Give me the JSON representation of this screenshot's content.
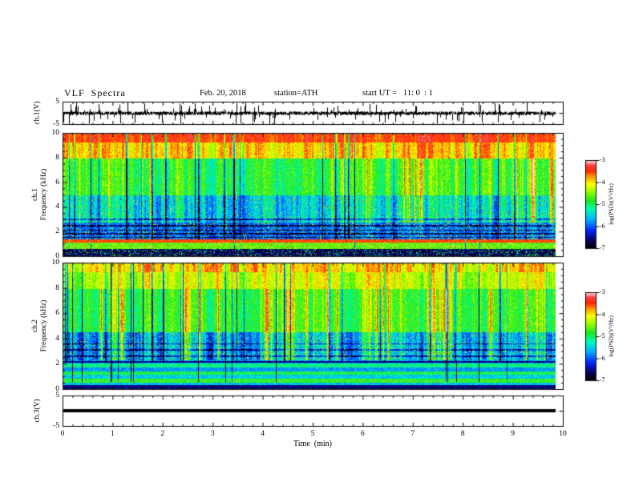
{
  "header": {
    "title": "VLF  Spectra",
    "date": "Feb. 20, 2018",
    "station": "station=ATH",
    "start_ut": "start UT =   11: 0  : 1"
  },
  "x_axis": {
    "label": "Time  (min)",
    "tick_labels": [
      "0",
      "1",
      "2",
      "3",
      "4",
      "5",
      "6",
      "7",
      "8",
      "9",
      "10"
    ]
  },
  "panels": {
    "ch1v": {
      "ylabel": "ch.1(V)",
      "ytick_top": "5",
      "ytick_bottom": "-5"
    },
    "spec1": {
      "ylabel_ch": "ch.1",
      "ylabel_freq": "Frequency  (kHz)",
      "yticks": [
        "10",
        "8",
        "6",
        "4",
        "2",
        "0"
      ]
    },
    "spec2": {
      "ylabel_ch": "ch.2",
      "ylabel_freq": "Frequency  (kHz)",
      "yticks": [
        "10",
        "8",
        "6",
        "4",
        "2",
        "0"
      ]
    },
    "ch3v": {
      "ylabel": "ch.3(V)",
      "ytick_top": "5",
      "ytick_bottom": "-5"
    }
  },
  "colorbar": {
    "label": "log(PSD)(V²/Hz)",
    "tick_labels": [
      "-3",
      "-4",
      "-5",
      "-6",
      "-7"
    ]
  },
  "chart_data": {
    "type": "heatmap",
    "title": "VLF Spectra",
    "date": "Feb. 20, 2018",
    "station": "ATH",
    "start_ut": "11:0:1",
    "xlabel": "Time (min)",
    "x_range_min": [
      0,
      10
    ],
    "data_end_min": 9.85,
    "grid": false,
    "panels": [
      {
        "name": "ch.1 waveform",
        "type": "line",
        "ylabel": "ch.1(V)",
        "ylim": [
          -5,
          5
        ],
        "signal": "zero-mean broadband noise, rms ~0.8 V, frequent impulsive spikes reaching ±5 V, continuous for full record"
      },
      {
        "name": "ch.1 spectrogram",
        "type": "heatmap",
        "ylabel": "Frequency (kHz)",
        "ylim": [
          0,
          10
        ],
        "zlabel": "log(PSD)(V²/Hz)",
        "zlim": [
          -7,
          -3
        ],
        "features": "red/orange high PSD above 8 kHz, yellow-green 4-8 kHz with vertical sferic streaks and dark-blue dropout columns, blue 1.3-2.7 kHz with dark horizontal harmonic lines, narrow dark-red band near 1.2 kHz, green band 0.6-1 kHz, near-black below 0.5 kHz"
      },
      {
        "name": "ch.2 spectrogram",
        "type": "heatmap",
        "ylabel": "Frequency (kHz)",
        "ylim": [
          0,
          10
        ],
        "zlabel": "log(PSD)(V²/Hz)",
        "zlim": [
          -7,
          -3
        ],
        "features": "green dominated, sparse red streaks near 9-10 kHz, blue band 2.3-4.5 kHz with cyan/green vertical streaks, alternating cyan/green/blue horizontal stripes below 2.3 kHz, dark base below 0.3 kHz"
      },
      {
        "name": "ch.3 waveform",
        "type": "line",
        "ylabel": "ch.3(V)",
        "ylim": [
          -5,
          5
        ],
        "signal": "constant 0 V thick flat line for full record"
      }
    ],
    "colormap": {
      "label": "log(PSD)(V²/Hz)",
      "range": [
        -7,
        -3
      ],
      "stops": [
        [
          0.0,
          "#000000"
        ],
        [
          0.08,
          "#0a005a"
        ],
        [
          0.2,
          "#0028ff"
        ],
        [
          0.33,
          "#00b4ff"
        ],
        [
          0.44,
          "#00ffb4"
        ],
        [
          0.54,
          "#1ee61e"
        ],
        [
          0.65,
          "#a0ff00"
        ],
        [
          0.73,
          "#ffff00"
        ],
        [
          0.81,
          "#ffa000"
        ],
        [
          0.88,
          "#ff2800"
        ],
        [
          0.94,
          "#ff3c3c"
        ],
        [
          1.0,
          "#ffdcdc"
        ]
      ]
    },
    "procedural": {
      "waveform": {
        "seed": 33,
        "base_amp": 0.85,
        "spike_prob": 0.05,
        "spike_max": 5
      },
      "spec1": {
        "seed": 11,
        "drop_prob": 0.04,
        "thin_prob": 0.018,
        "drop_fmin": 1.35,
        "dark_rows": [
          1.5,
          1.8,
          2.1,
          2.45,
          3.0
        ],
        "bands": [
          {
            "f": [
              9.3,
              10.01
            ],
            "b": 0.87,
            "r": 0.08,
            "n": 0.05
          },
          {
            "f": [
              8.0,
              9.3
            ],
            "b": 0.76,
            "r": 0.14,
            "a": 0.06,
            "n": 0.07
          },
          {
            "f": [
              5.0,
              8.0
            ],
            "b": 0.56,
            "a": 0.16,
            "r": 0.06,
            "n": 0.08,
            "boost": 1
          },
          {
            "f": [
              2.7,
              5.0
            ],
            "b": 0.42,
            "a": 0.22,
            "n": 0.09,
            "sp": 0.04,
            "boost": 1
          },
          {
            "f": [
              1.35,
              2.7
            ],
            "b": 0.27,
            "a": 0.1,
            "n": 0.09,
            "sp": 0.1
          },
          {
            "f": [
              1.08,
              1.35
            ],
            "b": 0.87,
            "n": 0.05
          },
          {
            "f": [
              0.55,
              1.08
            ],
            "b": 0.6,
            "n": 0.07,
            "sp": 0.08
          },
          {
            "f": [
              0.0,
              0.55
            ],
            "b": 0.07,
            "n": 0.05,
            "sp": 0.15
          }
        ]
      },
      "spec2": {
        "seed": 22,
        "drop_prob": 0.05,
        "thin_prob": 0.018,
        "drop_fmin": 2.2,
        "dark_rows": [
          2.15,
          2.6,
          3.1,
          3.6
        ],
        "bands": [
          {
            "f": [
              9.3,
              10.01
            ],
            "b": 0.74,
            "r": 0.16,
            "n": 0.07
          },
          {
            "f": [
              8.0,
              9.3
            ],
            "b": 0.67,
            "r": 0.1,
            "a": 0.08,
            "n": 0.08
          },
          {
            "f": [
              4.5,
              8.0
            ],
            "b": 0.56,
            "a": 0.12,
            "n": 0.08,
            "boost": 1
          },
          {
            "f": [
              2.3,
              4.5
            ],
            "b": 0.35,
            "a": 0.2,
            "n": 0.1,
            "sp": 0.05,
            "boost": 1
          },
          {
            "f": [
              2.0,
              2.3
            ],
            "b": 0.31,
            "n": 0.08
          },
          {
            "f": [
              1.7,
              2.0
            ],
            "b": 0.47,
            "n": 0.08
          },
          {
            "f": [
              1.4,
              1.7
            ],
            "b": 0.31,
            "n": 0.08
          },
          {
            "f": [
              1.1,
              1.4
            ],
            "b": 0.51,
            "n": 0.08
          },
          {
            "f": [
              0.8,
              1.1
            ],
            "b": 0.37,
            "n": 0.08
          },
          {
            "f": [
              0.5,
              0.8
            ],
            "b": 0.55,
            "n": 0.08
          },
          {
            "f": [
              0.3,
              0.5
            ],
            "b": 0.35,
            "n": 0.08
          },
          {
            "f": [
              0.0,
              0.3
            ],
            "b": 0.1,
            "n": 0.06
          }
        ]
      }
    }
  }
}
